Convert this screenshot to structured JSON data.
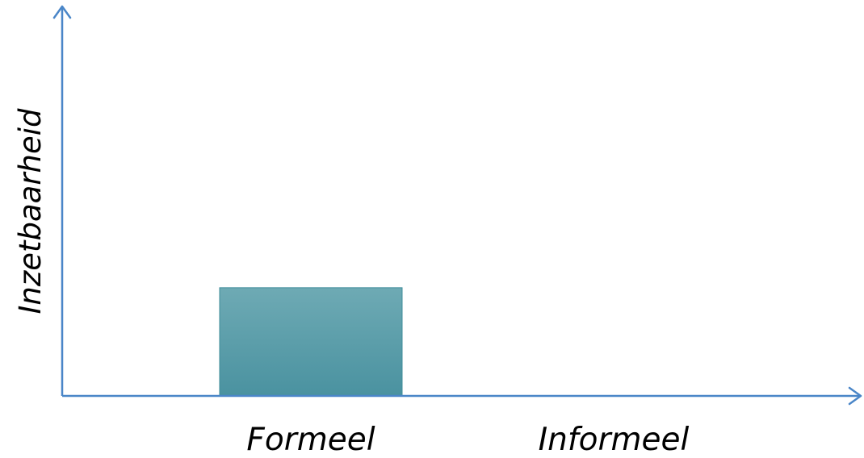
{
  "chart_data": {
    "type": "bar",
    "categories": [
      "Formeel",
      "Informeel"
    ],
    "values": [
      1,
      0
    ],
    "ylabel": "Inzetbaarheid",
    "xlabel": "",
    "ylim": [
      0,
      3.6
    ],
    "grid": false,
    "legend": "none",
    "colors": {
      "bar_top": "#6eaab4",
      "bar_bottom": "#4a92a0",
      "bar_edge": "#3f8d9a",
      "axis": "#4a86c8"
    }
  }
}
